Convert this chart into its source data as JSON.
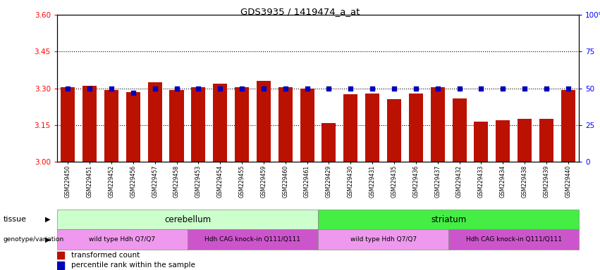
{
  "title": "GDS3935 / 1419474_a_at",
  "samples": [
    "GSM229450",
    "GSM229451",
    "GSM229452",
    "GSM229456",
    "GSM229457",
    "GSM229458",
    "GSM229453",
    "GSM229454",
    "GSM229455",
    "GSM229459",
    "GSM229460",
    "GSM229461",
    "GSM229429",
    "GSM229430",
    "GSM229431",
    "GSM229435",
    "GSM229436",
    "GSM229437",
    "GSM229432",
    "GSM229433",
    "GSM229434",
    "GSM229438",
    "GSM229439",
    "GSM229440"
  ],
  "red_values": [
    3.305,
    3.31,
    3.295,
    3.285,
    3.325,
    3.295,
    3.305,
    3.32,
    3.305,
    3.33,
    3.305,
    3.3,
    3.16,
    3.275,
    3.28,
    3.255,
    3.28,
    3.305,
    3.26,
    3.165,
    3.17,
    3.175,
    3.175,
    3.295
  ],
  "blue_values": [
    50,
    50,
    50,
    47,
    50,
    50,
    50,
    50,
    50,
    50,
    50,
    50,
    50,
    50,
    50,
    50,
    50,
    50,
    50,
    50,
    50,
    50,
    50,
    50
  ],
  "ylim_left": [
    3.0,
    3.6
  ],
  "ylim_right": [
    0,
    100
  ],
  "yticks_left": [
    3.0,
    3.15,
    3.3,
    3.45,
    3.6
  ],
  "yticks_right": [
    0,
    25,
    50,
    75,
    100
  ],
  "grid_lines": [
    3.15,
    3.3,
    3.45
  ],
  "bar_color": "#bb1100",
  "blue_color": "#0000bb",
  "tissue_groups": [
    {
      "label": "cerebellum",
      "start": 0,
      "end": 11,
      "color": "#ccffcc"
    },
    {
      "label": "striatum",
      "start": 12,
      "end": 23,
      "color": "#44ee44"
    }
  ],
  "genotype_groups": [
    {
      "label": "wild type Hdh Q7/Q7",
      "start": 0,
      "end": 5,
      "color": "#ee99ee"
    },
    {
      "label": "Hdh CAG knock-in Q111/Q111",
      "start": 6,
      "end": 11,
      "color": "#cc55cc"
    },
    {
      "label": "wild type Hdh Q7/Q7",
      "start": 12,
      "end": 17,
      "color": "#ee99ee"
    },
    {
      "label": "Hdh CAG knock-in Q111/Q111",
      "start": 18,
      "end": 23,
      "color": "#cc55cc"
    }
  ],
  "legend_items": [
    {
      "label": "transformed count",
      "color": "#bb1100"
    },
    {
      "label": "percentile rank within the sample",
      "color": "#0000bb"
    }
  ]
}
